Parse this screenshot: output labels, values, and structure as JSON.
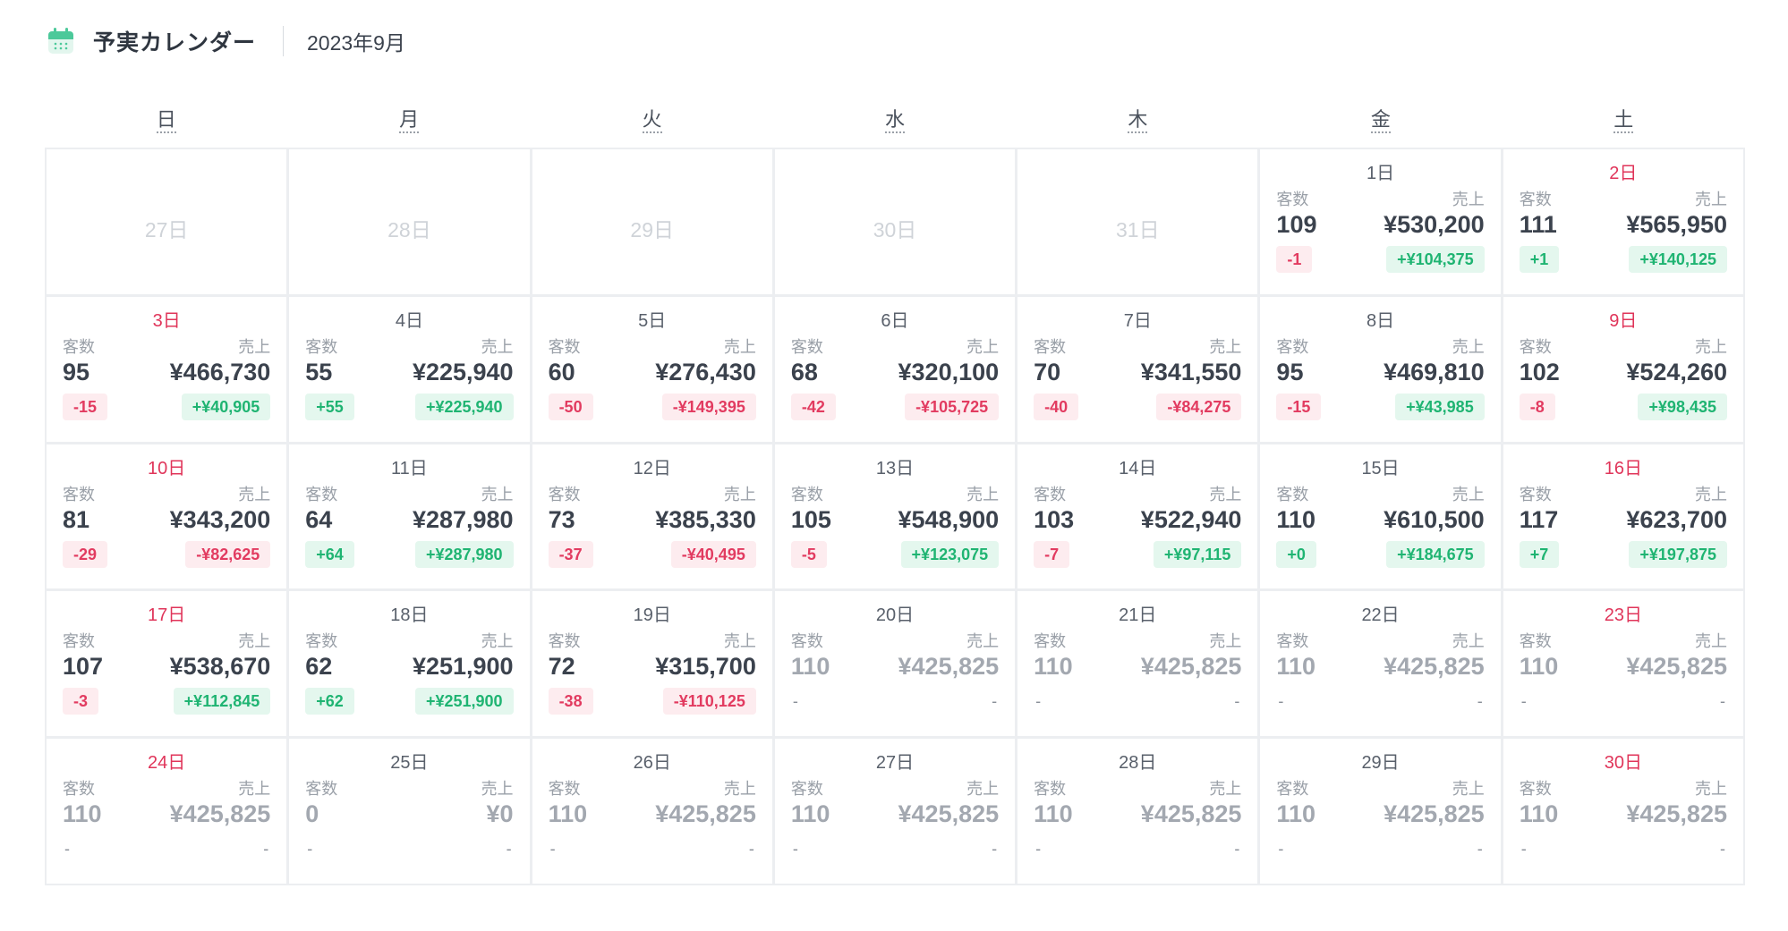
{
  "header": {
    "title": "予実カレンダー",
    "month": "2023年9月",
    "icon": "calendar-icon",
    "accent": "#4cc99a"
  },
  "weekdays": [
    "日",
    "月",
    "火",
    "水",
    "木",
    "金",
    "土"
  ],
  "labels": {
    "customers": "客数",
    "sales": "売上"
  },
  "leading_days": [
    "27日",
    "28日",
    "29日",
    "30日",
    "31日"
  ],
  "days": [
    {
      "day": "1日",
      "weekend": false,
      "customers": "109",
      "sales": "¥530,200",
      "customers_diff": "-1",
      "sales_diff": "+¥104,375",
      "forecast": false
    },
    {
      "day": "2日",
      "weekend": true,
      "customers": "111",
      "sales": "¥565,950",
      "customers_diff": "+1",
      "sales_diff": "+¥140,125",
      "forecast": false
    },
    {
      "day": "3日",
      "weekend": true,
      "customers": "95",
      "sales": "¥466,730",
      "customers_diff": "-15",
      "sales_diff": "+¥40,905",
      "forecast": false
    },
    {
      "day": "4日",
      "weekend": false,
      "customers": "55",
      "sales": "¥225,940",
      "customers_diff": "+55",
      "sales_diff": "+¥225,940",
      "forecast": false
    },
    {
      "day": "5日",
      "weekend": false,
      "customers": "60",
      "sales": "¥276,430",
      "customers_diff": "-50",
      "sales_diff": "-¥149,395",
      "forecast": false
    },
    {
      "day": "6日",
      "weekend": false,
      "customers": "68",
      "sales": "¥320,100",
      "customers_diff": "-42",
      "sales_diff": "-¥105,725",
      "forecast": false
    },
    {
      "day": "7日",
      "weekend": false,
      "customers": "70",
      "sales": "¥341,550",
      "customers_diff": "-40",
      "sales_diff": "-¥84,275",
      "forecast": false
    },
    {
      "day": "8日",
      "weekend": false,
      "customers": "95",
      "sales": "¥469,810",
      "customers_diff": "-15",
      "sales_diff": "+¥43,985",
      "forecast": false
    },
    {
      "day": "9日",
      "weekend": true,
      "customers": "102",
      "sales": "¥524,260",
      "customers_diff": "-8",
      "sales_diff": "+¥98,435",
      "forecast": false
    },
    {
      "day": "10日",
      "weekend": true,
      "customers": "81",
      "sales": "¥343,200",
      "customers_diff": "-29",
      "sales_diff": "-¥82,625",
      "forecast": false
    },
    {
      "day": "11日",
      "weekend": false,
      "customers": "64",
      "sales": "¥287,980",
      "customers_diff": "+64",
      "sales_diff": "+¥287,980",
      "forecast": false
    },
    {
      "day": "12日",
      "weekend": false,
      "customers": "73",
      "sales": "¥385,330",
      "customers_diff": "-37",
      "sales_diff": "-¥40,495",
      "forecast": false
    },
    {
      "day": "13日",
      "weekend": false,
      "customers": "105",
      "sales": "¥548,900",
      "customers_diff": "-5",
      "sales_diff": "+¥123,075",
      "forecast": false
    },
    {
      "day": "14日",
      "weekend": false,
      "customers": "103",
      "sales": "¥522,940",
      "customers_diff": "-7",
      "sales_diff": "+¥97,115",
      "forecast": false
    },
    {
      "day": "15日",
      "weekend": false,
      "customers": "110",
      "sales": "¥610,500",
      "customers_diff": "+0",
      "sales_diff": "+¥184,675",
      "forecast": false
    },
    {
      "day": "16日",
      "weekend": true,
      "customers": "117",
      "sales": "¥623,700",
      "customers_diff": "+7",
      "sales_diff": "+¥197,875",
      "forecast": false
    },
    {
      "day": "17日",
      "weekend": true,
      "customers": "107",
      "sales": "¥538,670",
      "customers_diff": "-3",
      "sales_diff": "+¥112,845",
      "forecast": false
    },
    {
      "day": "18日",
      "weekend": false,
      "customers": "62",
      "sales": "¥251,900",
      "customers_diff": "+62",
      "sales_diff": "+¥251,900",
      "forecast": false
    },
    {
      "day": "19日",
      "weekend": false,
      "customers": "72",
      "sales": "¥315,700",
      "customers_diff": "-38",
      "sales_diff": "-¥110,125",
      "forecast": false
    },
    {
      "day": "20日",
      "weekend": false,
      "customers": "110",
      "sales": "¥425,825",
      "customers_diff": "-",
      "sales_diff": "-",
      "forecast": true
    },
    {
      "day": "21日",
      "weekend": false,
      "customers": "110",
      "sales": "¥425,825",
      "customers_diff": "-",
      "sales_diff": "-",
      "forecast": true
    },
    {
      "day": "22日",
      "weekend": false,
      "customers": "110",
      "sales": "¥425,825",
      "customers_diff": "-",
      "sales_diff": "-",
      "forecast": true
    },
    {
      "day": "23日",
      "weekend": true,
      "customers": "110",
      "sales": "¥425,825",
      "customers_diff": "-",
      "sales_diff": "-",
      "forecast": true
    },
    {
      "day": "24日",
      "weekend": true,
      "customers": "110",
      "sales": "¥425,825",
      "customers_diff": "-",
      "sales_diff": "-",
      "forecast": true
    },
    {
      "day": "25日",
      "weekend": false,
      "customers": "0",
      "sales": "¥0",
      "customers_diff": "-",
      "sales_diff": "-",
      "forecast": true
    },
    {
      "day": "26日",
      "weekend": false,
      "customers": "110",
      "sales": "¥425,825",
      "customers_diff": "-",
      "sales_diff": "-",
      "forecast": true
    },
    {
      "day": "27日",
      "weekend": false,
      "customers": "110",
      "sales": "¥425,825",
      "customers_diff": "-",
      "sales_diff": "-",
      "forecast": true
    },
    {
      "day": "28日",
      "weekend": false,
      "customers": "110",
      "sales": "¥425,825",
      "customers_diff": "-",
      "sales_diff": "-",
      "forecast": true
    },
    {
      "day": "29日",
      "weekend": false,
      "customers": "110",
      "sales": "¥425,825",
      "customers_diff": "-",
      "sales_diff": "-",
      "forecast": true
    },
    {
      "day": "30日",
      "weekend": true,
      "customers": "110",
      "sales": "¥425,825",
      "customers_diff": "-",
      "sales_diff": "-",
      "forecast": true
    }
  ]
}
